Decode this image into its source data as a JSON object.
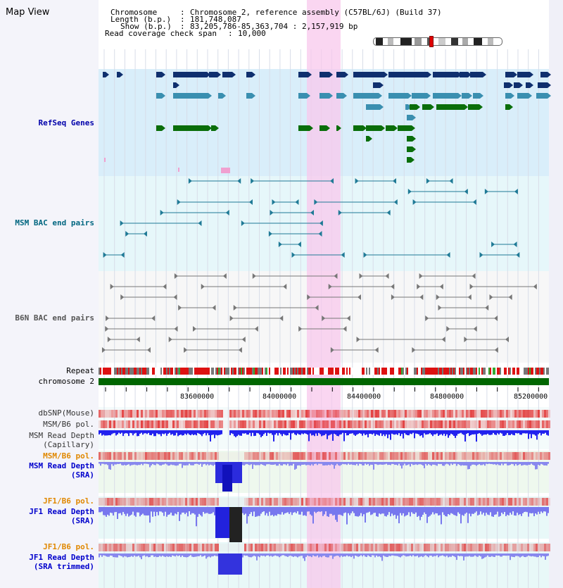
{
  "title": "Map View",
  "header": {
    "chromosome_key": "Chromosome",
    "chromosome_val": "Chromosome 2, reference assembly (C57BL/6J) (Build 37)",
    "length_key": "Length (b.p.)",
    "length_val": "181,748,087",
    "show_key": "Show (b.p.)",
    "show_val": "83,205,786-85,363,704 : 2,157,919 bp",
    "coverage_key": "Read coverage check span",
    "coverage_val": "10,000"
  },
  "tracks": {
    "refseq": "RefSeq Genes",
    "msm_bac": "MSM BAC end pairs",
    "b6n_bac": "B6N BAC end pairs",
    "repeat": "Repeat",
    "chromosome": "chromosome 2",
    "dbsnp": "dbSNP(Mouse)",
    "msm_b6_pol_cap": "MSM/B6 pol.",
    "msm_depth_cap_1": "MSM Read Depth",
    "msm_depth_cap_2": "(Capillary)",
    "msm_b6_pol_sra": "MSM/B6 pol.",
    "msm_depth_sra_1": "MSM Read Depth",
    "msm_depth_sra_2": "(SRA)",
    "jf1_b6_pol_1": "JF1/B6 pol.",
    "jf1_depth_sra_1": "JF1 Read Depth",
    "jf1_depth_sra_2": "(SRA)",
    "jf1_b6_pol_2": "JF1/B6 pol.",
    "jf1_depth_trim_1": "JF1 Read Depth",
    "jf1_depth_trim_2": "(SRA trimmed)"
  },
  "axis": {
    "ticks": [
      "83600000",
      "84000000",
      "84400000",
      "84800000",
      "85200000"
    ]
  },
  "colors": {
    "refseq_bg": "#d9eefa",
    "bac_bg": "#e6f7fa",
    "highlight": "#f8c8ec",
    "gene_navy": "#0f2f6e",
    "gene_teal": "#3a8fb0",
    "gene_green": "#0a6e0a",
    "refseq_label": "#0000aa",
    "msm_label": "#006680",
    "b6n_label": "#555555",
    "orange_label": "#e08800",
    "blue_label": "#0000cc",
    "chrom_bar": "#006600"
  }
}
